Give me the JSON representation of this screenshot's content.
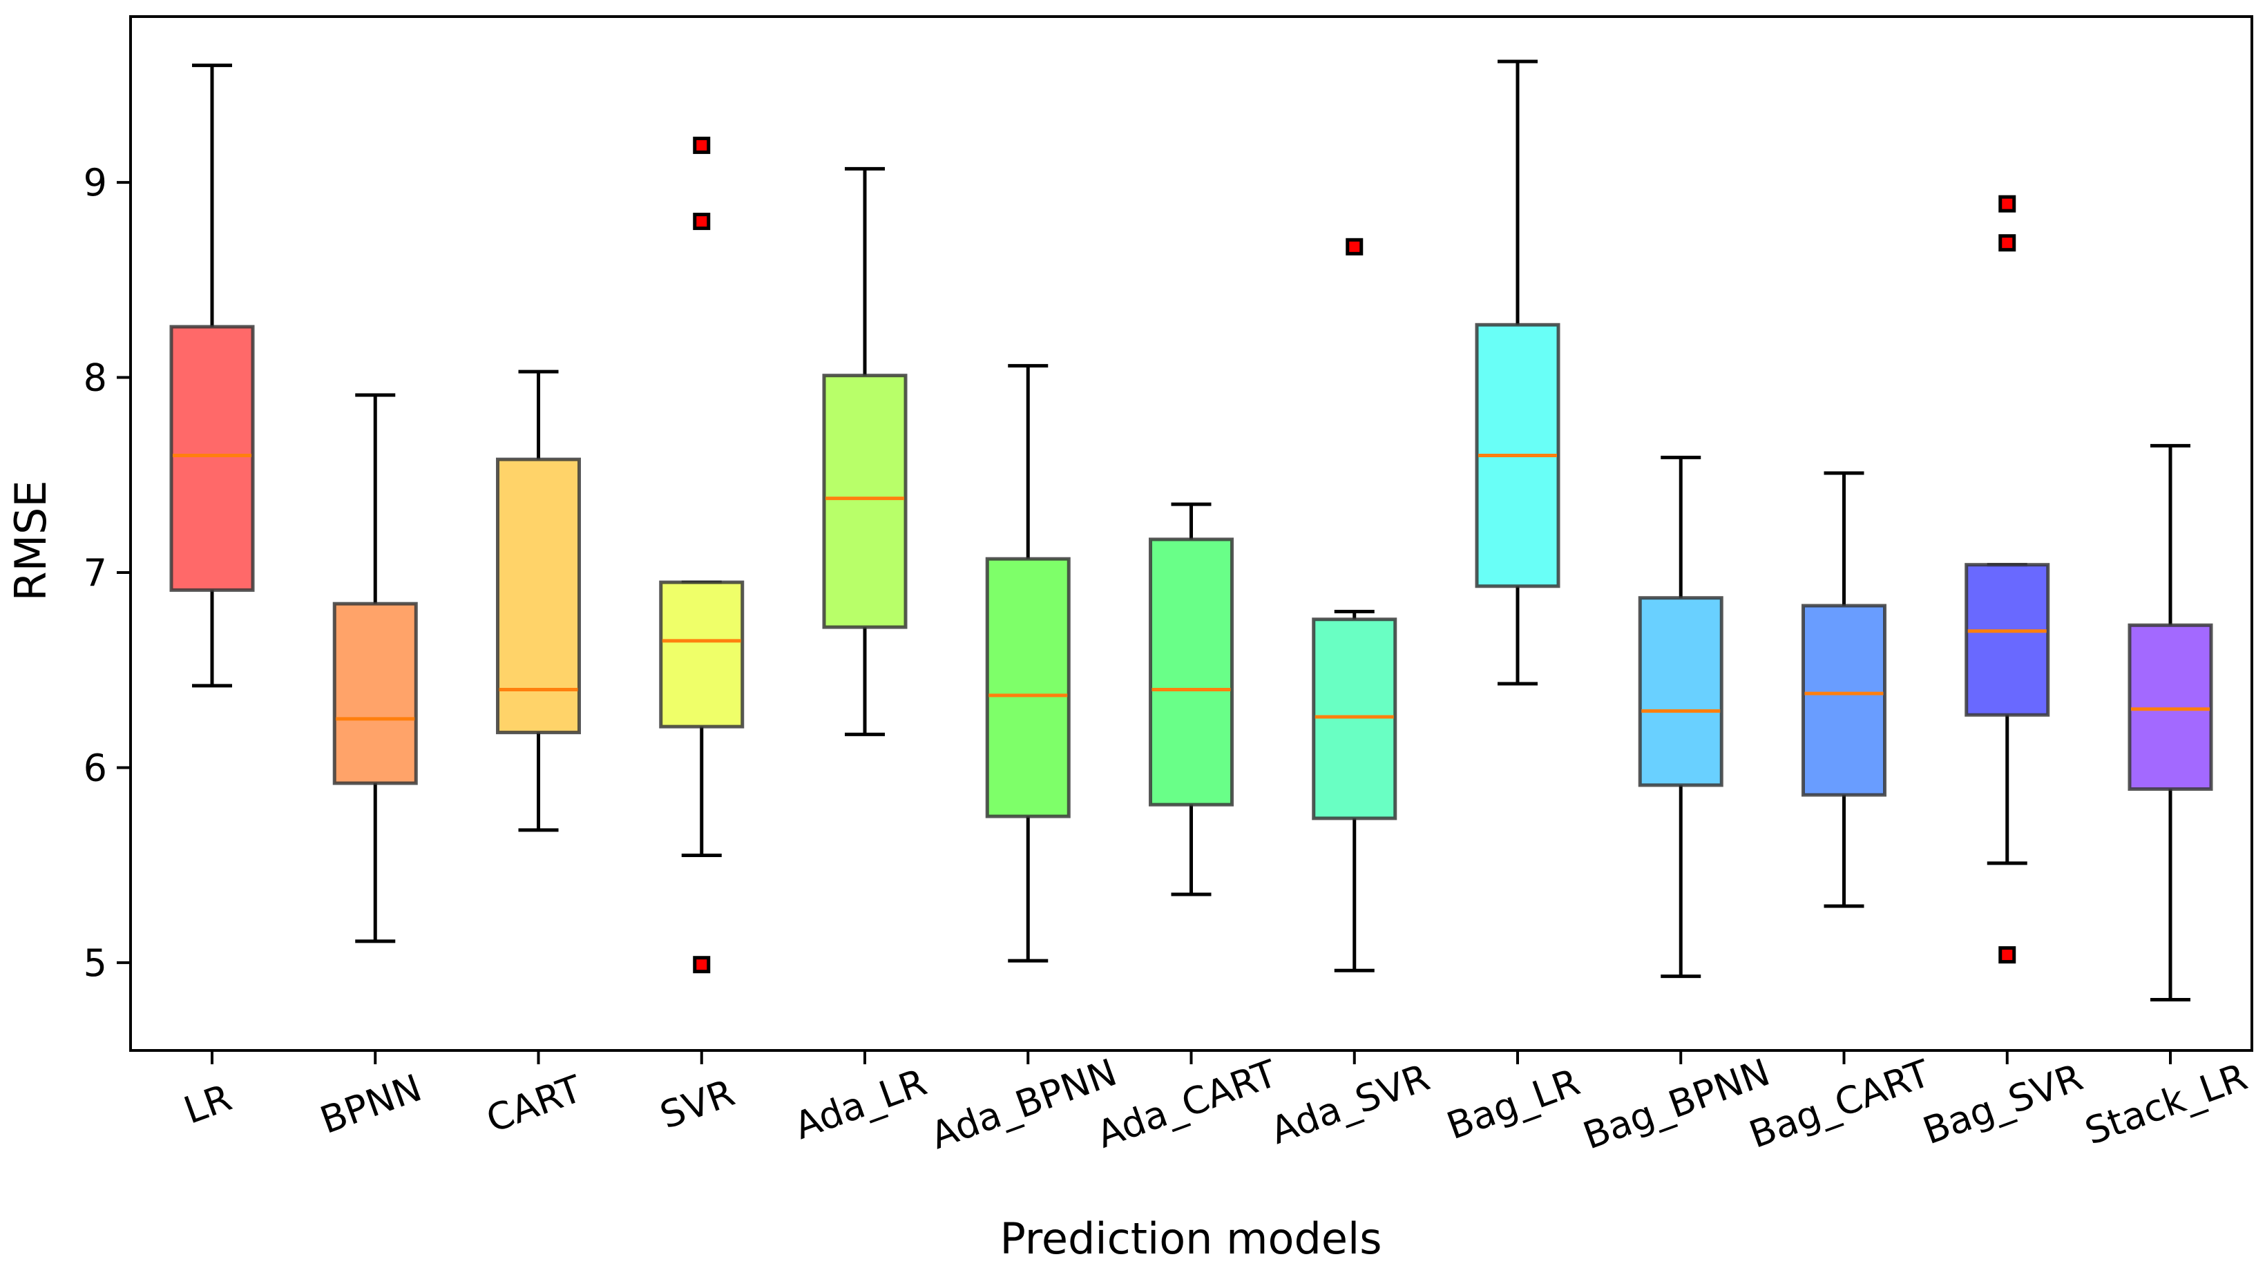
{
  "chart_data": {
    "type": "boxplot",
    "title": "",
    "xlabel": "Prediction models",
    "ylabel": "RMSE",
    "ylim": [
      4.55,
      9.85
    ],
    "yticks": [
      5,
      6,
      7,
      8,
      9
    ],
    "grid": false,
    "legend": "none",
    "median_color": "#ff7f0e",
    "outlier_color": "#ff0000",
    "series": [
      {
        "name": "LR",
        "color": "#ff4444",
        "whisker_low": 6.42,
        "q1": 6.91,
        "median": 7.6,
        "q3": 8.26,
        "whisker_high": 9.6,
        "outliers": []
      },
      {
        "name": "BPNN",
        "color": "#ff8c44",
        "whisker_low": 5.11,
        "q1": 5.92,
        "median": 6.25,
        "q3": 6.84,
        "whisker_high": 7.91,
        "outliers": []
      },
      {
        "name": "CART",
        "color": "#ffc844",
        "whisker_low": 5.68,
        "q1": 6.18,
        "median": 6.4,
        "q3": 7.58,
        "whisker_high": 8.03,
        "outliers": []
      },
      {
        "name": "SVR",
        "color": "#ebff44",
        "whisker_low": 5.55,
        "q1": 6.21,
        "median": 6.65,
        "q3": 6.95,
        "whisker_high": 6.95,
        "outliers": [
          4.99,
          8.8,
          9.19
        ]
      },
      {
        "name": "Ada_LR",
        "color": "#a6ff44",
        "whisker_low": 6.17,
        "q1": 6.72,
        "median": 7.38,
        "q3": 8.01,
        "whisker_high": 9.07,
        "outliers": []
      },
      {
        "name": "Ada_BPNN",
        "color": "#5eff44",
        "whisker_low": 5.01,
        "q1": 5.75,
        "median": 6.37,
        "q3": 7.07,
        "whisker_high": 8.06,
        "outliers": []
      },
      {
        "name": "Ada_CART",
        "color": "#44ff6a",
        "whisker_low": 5.35,
        "q1": 5.81,
        "median": 6.4,
        "q3": 7.17,
        "whisker_high": 7.35,
        "outliers": []
      },
      {
        "name": "Ada_SVR",
        "color": "#44ffb4",
        "whisker_low": 4.96,
        "q1": 5.74,
        "median": 6.26,
        "q3": 6.76,
        "whisker_high": 6.8,
        "outliers": [
          8.67
        ]
      },
      {
        "name": "Bag_LR",
        "color": "#44fff5",
        "whisker_low": 6.43,
        "q1": 6.93,
        "median": 7.6,
        "q3": 8.27,
        "whisker_high": 9.62,
        "outliers": []
      },
      {
        "name": "Bag_BPNN",
        "color": "#44c4ff",
        "whisker_low": 4.93,
        "q1": 5.91,
        "median": 6.29,
        "q3": 6.87,
        "whisker_high": 7.59,
        "outliers": []
      },
      {
        "name": "Bag_CART",
        "color": "#4484ff",
        "whisker_low": 5.29,
        "q1": 5.86,
        "median": 6.38,
        "q3": 6.83,
        "whisker_high": 7.51,
        "outliers": []
      },
      {
        "name": "Bag_SVR",
        "color": "#4444ff",
        "whisker_low": 5.51,
        "q1": 6.27,
        "median": 6.7,
        "q3": 7.04,
        "whisker_high": 7.04,
        "outliers": [
          5.04,
          8.69,
          8.89
        ]
      },
      {
        "name": "Stack_LR",
        "color": "#8c44ff",
        "whisker_low": 4.81,
        "q1": 5.89,
        "median": 6.3,
        "q3": 6.73,
        "whisker_high": 7.65,
        "outliers": []
      }
    ]
  }
}
